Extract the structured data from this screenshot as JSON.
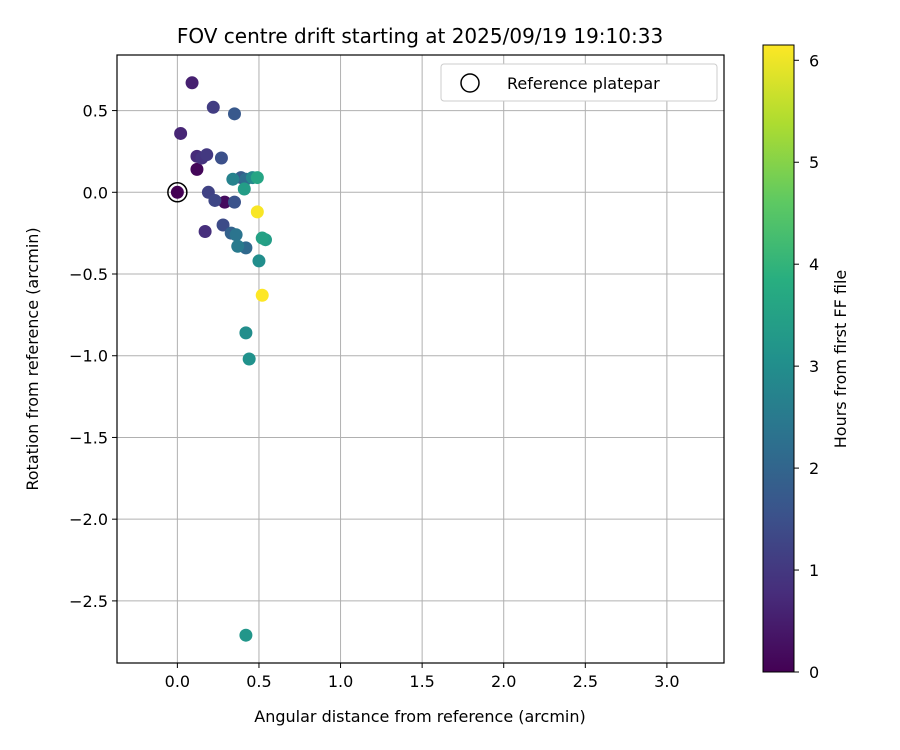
{
  "chart_data": {
    "type": "scatter",
    "title": "FOV centre drift starting at 2025/09/19 19:10:33",
    "xlabel": "Angular distance from reference (arcmin)",
    "ylabel": "Rotation from reference (arcmin)",
    "xlim": [
      -0.37,
      3.35
    ],
    "ylim": [
      -2.88,
      0.84
    ],
    "xticks": [
      0.0,
      0.5,
      1.0,
      1.5,
      2.0,
      2.5,
      3.0
    ],
    "xtick_labels": [
      "0.0",
      "0.5",
      "1.0",
      "1.5",
      "2.0",
      "2.5",
      "3.0"
    ],
    "yticks": [
      0.5,
      0.0,
      -0.5,
      -1.0,
      -1.5,
      -2.0,
      -2.5
    ],
    "ytick_labels": [
      "0.5",
      "0.0",
      "−0.5",
      "−1.0",
      "−1.5",
      "−2.0",
      "−2.5"
    ],
    "grid": true,
    "legend": {
      "position": "top-right",
      "entries": [
        "Reference platepar"
      ]
    },
    "reference_point": {
      "x": 0.0,
      "y": 0.0,
      "label": "Reference platepar"
    },
    "colorbar": {
      "label": "Hours from first FF file",
      "min": 0,
      "max": 6.15,
      "ticks": [
        0,
        1,
        2,
        3,
        4,
        5,
        6
      ],
      "tick_labels": [
        "0",
        "1",
        "2",
        "3",
        "4",
        "5",
        "6"
      ],
      "colormap": "viridis"
    },
    "points": [
      {
        "x": 0.0,
        "y": 0.0,
        "hours": 0.0
      },
      {
        "x": 0.12,
        "y": 0.14,
        "hours": 0.1
      },
      {
        "x": 0.29,
        "y": -0.06,
        "hours": 0.2
      },
      {
        "x": 0.09,
        "y": 0.67,
        "hours": 0.55
      },
      {
        "x": 0.02,
        "y": 0.36,
        "hours": 0.65
      },
      {
        "x": 0.12,
        "y": 0.22,
        "hours": 0.75
      },
      {
        "x": 0.17,
        "y": -0.24,
        "hours": 0.8
      },
      {
        "x": 0.15,
        "y": 0.21,
        "hours": 0.9
      },
      {
        "x": 0.18,
        "y": 0.23,
        "hours": 1.0
      },
      {
        "x": 0.22,
        "y": 0.52,
        "hours": 1.1
      },
      {
        "x": 0.19,
        "y": 0.0,
        "hours": 1.2
      },
      {
        "x": 0.23,
        "y": -0.05,
        "hours": 1.3
      },
      {
        "x": 0.28,
        "y": -0.2,
        "hours": 1.4
      },
      {
        "x": 0.27,
        "y": 0.21,
        "hours": 1.5
      },
      {
        "x": 0.35,
        "y": -0.06,
        "hours": 1.55
      },
      {
        "x": 0.35,
        "y": 0.48,
        "hours": 1.7
      },
      {
        "x": 0.39,
        "y": 0.09,
        "hours": 1.8
      },
      {
        "x": 0.33,
        "y": -0.25,
        "hours": 1.9
      },
      {
        "x": 0.42,
        "y": -0.34,
        "hours": 2.1
      },
      {
        "x": 0.42,
        "y": 0.08,
        "hours": 2.2
      },
      {
        "x": 0.36,
        "y": -0.26,
        "hours": 2.35
      },
      {
        "x": 0.37,
        "y": -0.33,
        "hours": 2.5
      },
      {
        "x": 0.34,
        "y": 0.08,
        "hours": 2.7
      },
      {
        "x": 0.46,
        "y": 0.09,
        "hours": 2.9
      },
      {
        "x": 0.5,
        "y": -0.42,
        "hours": 3.0
      },
      {
        "x": 0.42,
        "y": -0.86,
        "hours": 3.0
      },
      {
        "x": 0.44,
        "y": -1.02,
        "hours": 3.1
      },
      {
        "x": 0.42,
        "y": -2.71,
        "hours": 3.2
      },
      {
        "x": 0.41,
        "y": 0.02,
        "hours": 3.4
      },
      {
        "x": 0.54,
        "y": -0.29,
        "hours": 3.4
      },
      {
        "x": 0.52,
        "y": -0.28,
        "hours": 3.5
      },
      {
        "x": 0.49,
        "y": 0.09,
        "hours": 3.6
      },
      {
        "x": 0.49,
        "y": -0.12,
        "hours": 6.1
      },
      {
        "x": 0.52,
        "y": -0.63,
        "hours": 6.15
      }
    ]
  }
}
